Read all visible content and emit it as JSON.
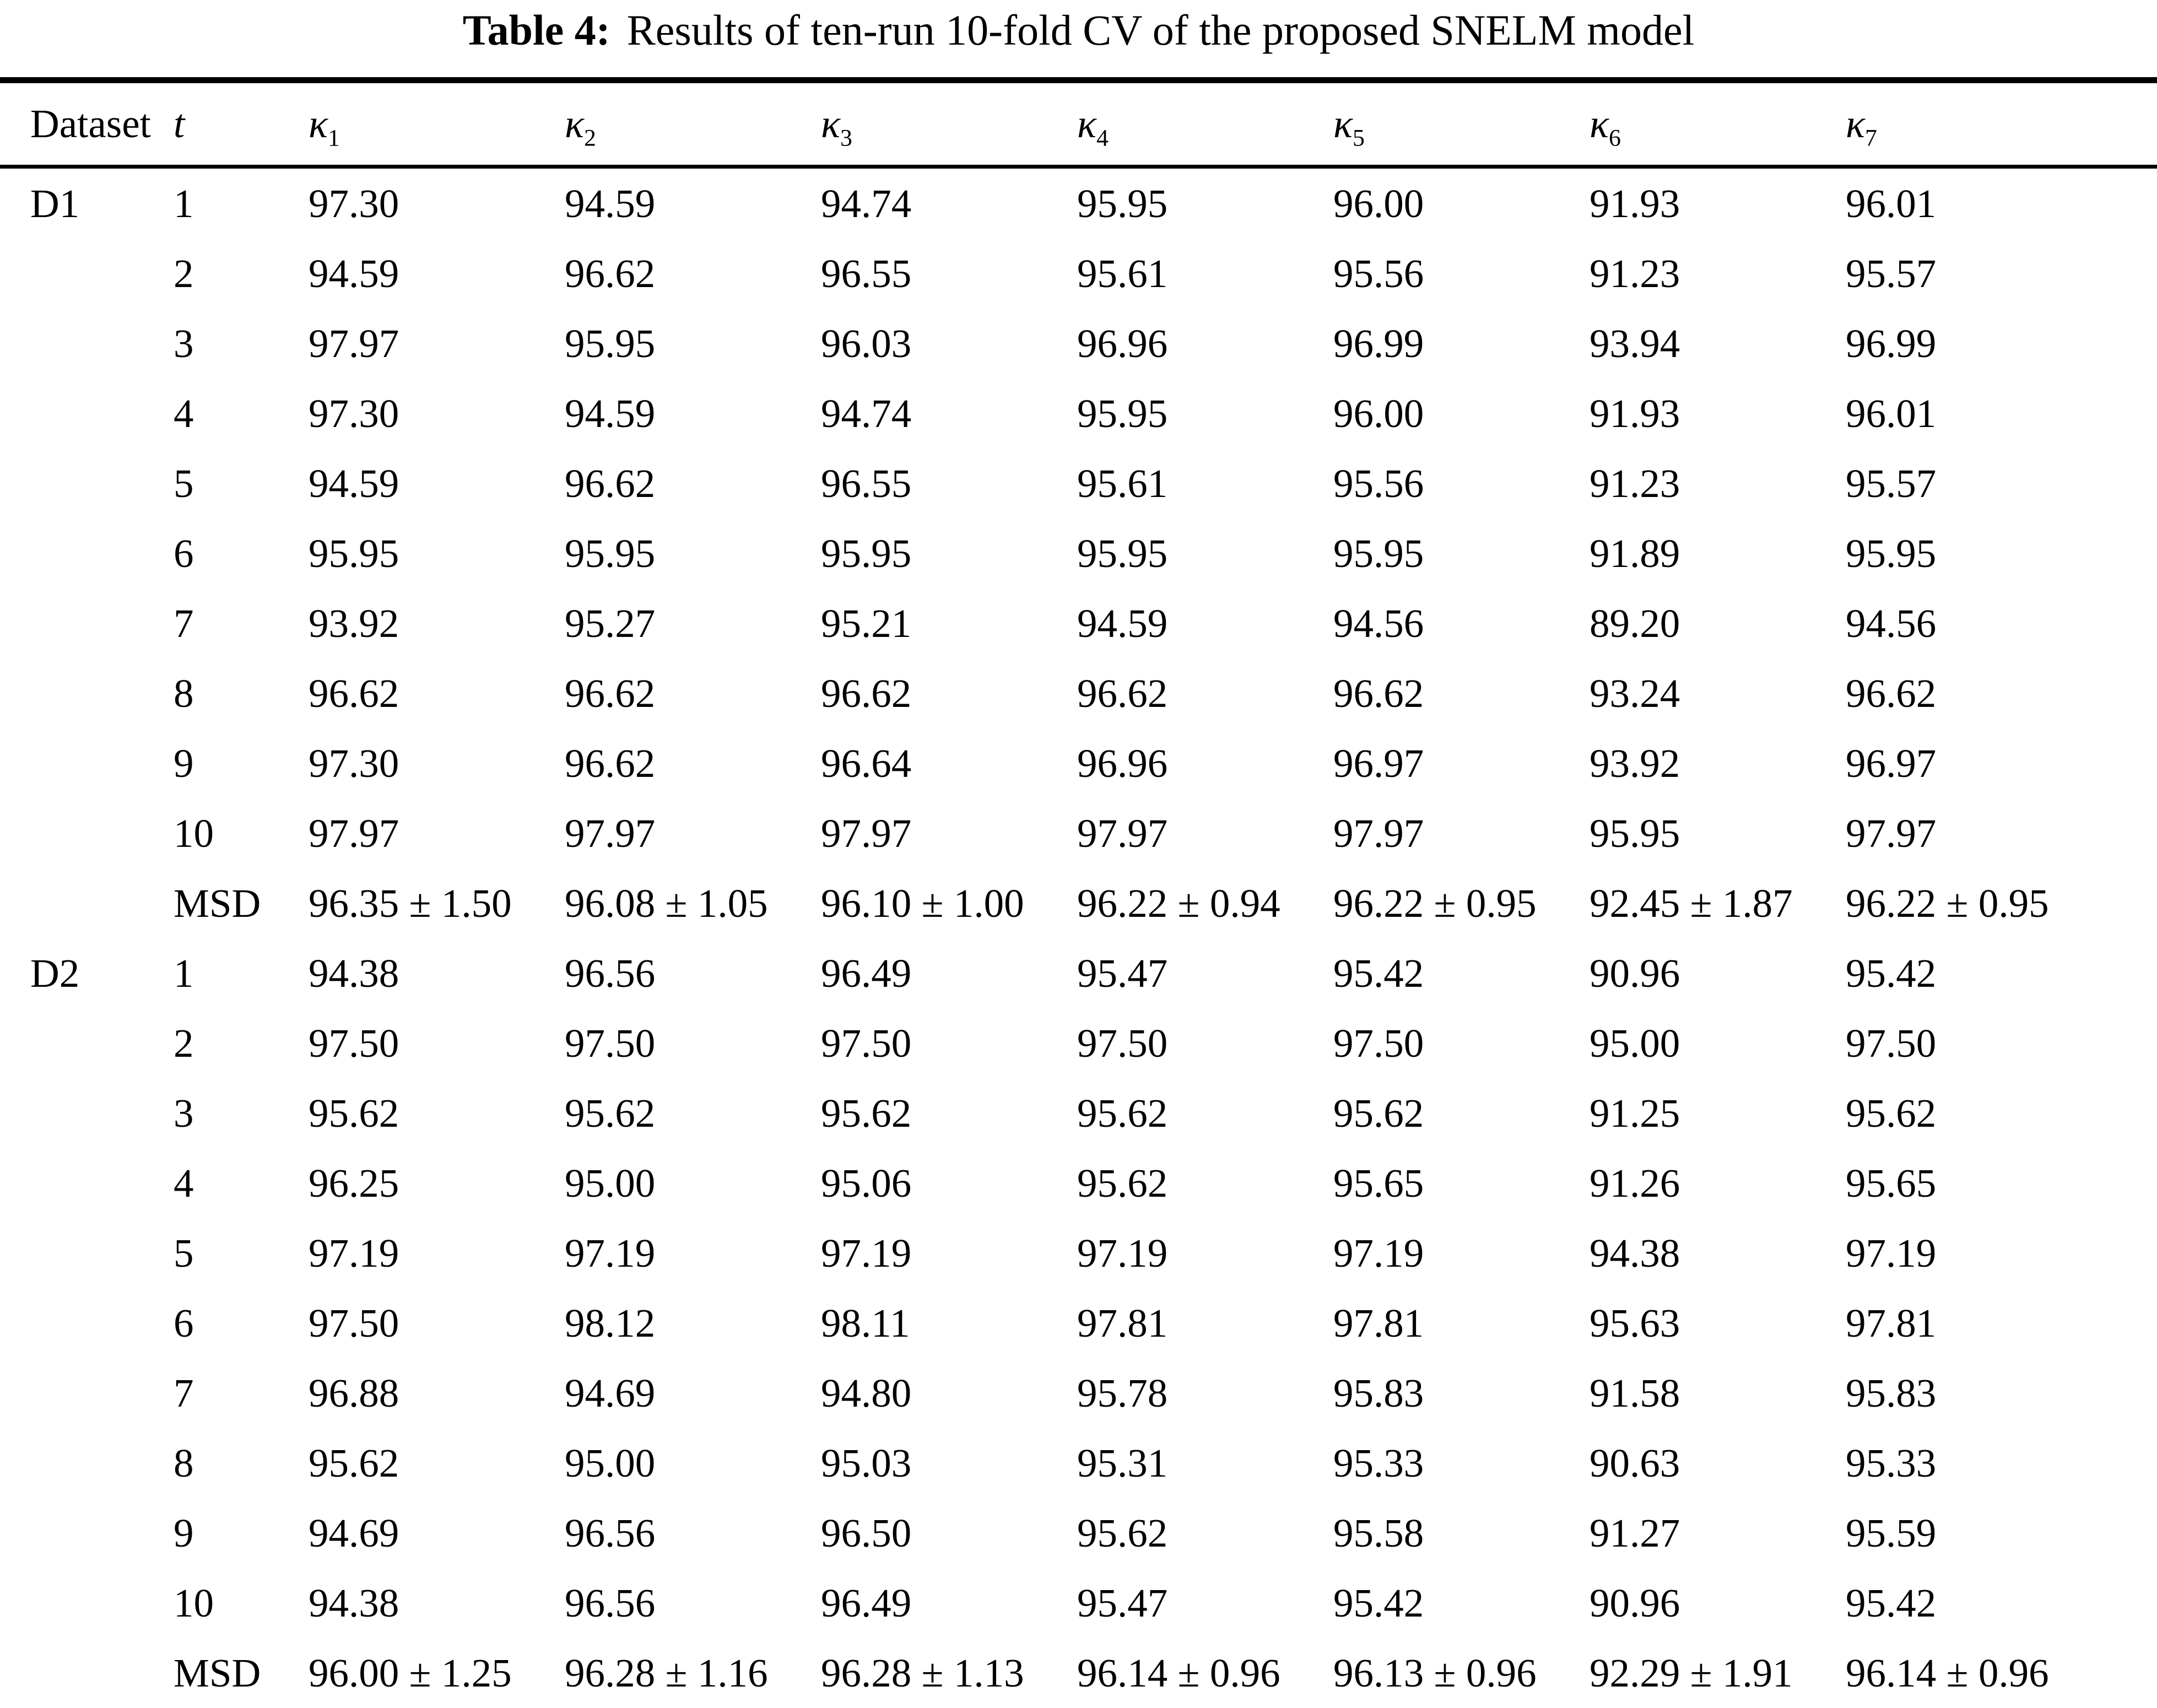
{
  "caption": {
    "label": "Table 4:",
    "text": "Results of ten-run 10-fold CV of the proposed SNELM model"
  },
  "table": {
    "columns": [
      {
        "text": "Dataset",
        "sub": ""
      },
      {
        "text": "t",
        "sub": ""
      },
      {
        "text": "κ",
        "sub": "1"
      },
      {
        "text": "κ",
        "sub": "2"
      },
      {
        "text": "κ",
        "sub": "3"
      },
      {
        "text": "κ",
        "sub": "4"
      },
      {
        "text": "κ",
        "sub": "5"
      },
      {
        "text": "κ",
        "sub": "6"
      },
      {
        "text": "κ",
        "sub": "7"
      }
    ],
    "groups": [
      {
        "dataset": "D1",
        "rows": [
          {
            "t": "1",
            "values": [
              "97.30",
              "94.59",
              "94.74",
              "95.95",
              "96.00",
              "91.93",
              "96.01"
            ]
          },
          {
            "t": "2",
            "values": [
              "94.59",
              "96.62",
              "96.55",
              "95.61",
              "95.56",
              "91.23",
              "95.57"
            ]
          },
          {
            "t": "3",
            "values": [
              "97.97",
              "95.95",
              "96.03",
              "96.96",
              "96.99",
              "93.94",
              "96.99"
            ]
          },
          {
            "t": "4",
            "values": [
              "97.30",
              "94.59",
              "94.74",
              "95.95",
              "96.00",
              "91.93",
              "96.01"
            ]
          },
          {
            "t": "5",
            "values": [
              "94.59",
              "96.62",
              "96.55",
              "95.61",
              "95.56",
              "91.23",
              "95.57"
            ]
          },
          {
            "t": "6",
            "values": [
              "95.95",
              "95.95",
              "95.95",
              "95.95",
              "95.95",
              "91.89",
              "95.95"
            ]
          },
          {
            "t": "7",
            "values": [
              "93.92",
              "95.27",
              "95.21",
              "94.59",
              "94.56",
              "89.20",
              "94.56"
            ]
          },
          {
            "t": "8",
            "values": [
              "96.62",
              "96.62",
              "96.62",
              "96.62",
              "96.62",
              "93.24",
              "96.62"
            ]
          },
          {
            "t": "9",
            "values": [
              "97.30",
              "96.62",
              "96.64",
              "96.96",
              "96.97",
              "93.92",
              "96.97"
            ]
          },
          {
            "t": "10",
            "values": [
              "97.97",
              "97.97",
              "97.97",
              "97.97",
              "97.97",
              "95.95",
              "97.97"
            ]
          },
          {
            "t": "MSD",
            "values": [
              "96.35 ± 1.50",
              "96.08 ± 1.05",
              "96.10 ± 1.00",
              "96.22 ± 0.94",
              "96.22 ± 0.95",
              "92.45 ± 1.87",
              "96.22 ± 0.95"
            ]
          }
        ]
      },
      {
        "dataset": "D2",
        "rows": [
          {
            "t": "1",
            "values": [
              "94.38",
              "96.56",
              "96.49",
              "95.47",
              "95.42",
              "90.96",
              "95.42"
            ]
          },
          {
            "t": "2",
            "values": [
              "97.50",
              "97.50",
              "97.50",
              "97.50",
              "97.50",
              "95.00",
              "97.50"
            ]
          },
          {
            "t": "3",
            "values": [
              "95.62",
              "95.62",
              "95.62",
              "95.62",
              "95.62",
              "91.25",
              "95.62"
            ]
          },
          {
            "t": "4",
            "values": [
              "96.25",
              "95.00",
              "95.06",
              "95.62",
              "95.65",
              "91.26",
              "95.65"
            ]
          },
          {
            "t": "5",
            "values": [
              "97.19",
              "97.19",
              "97.19",
              "97.19",
              "97.19",
              "94.38",
              "97.19"
            ]
          },
          {
            "t": "6",
            "values": [
              "97.50",
              "98.12",
              "98.11",
              "97.81",
              "97.81",
              "95.63",
              "97.81"
            ]
          },
          {
            "t": "7",
            "values": [
              "96.88",
              "94.69",
              "94.80",
              "95.78",
              "95.83",
              "91.58",
              "95.83"
            ]
          },
          {
            "t": "8",
            "values": [
              "95.62",
              "95.00",
              "95.03",
              "95.31",
              "95.33",
              "90.63",
              "95.33"
            ]
          },
          {
            "t": "9",
            "values": [
              "94.69",
              "96.56",
              "96.50",
              "95.62",
              "95.58",
              "91.27",
              "95.59"
            ]
          },
          {
            "t": "10",
            "values": [
              "94.38",
              "96.56",
              "96.49",
              "95.47",
              "95.42",
              "90.96",
              "95.42"
            ]
          },
          {
            "t": "MSD",
            "values": [
              "96.00 ± 1.25",
              "96.28 ± 1.16",
              "96.28 ± 1.13",
              "96.14 ± 0.96",
              "96.13 ± 0.96",
              "92.29 ± 1.91",
              "96.14 ± 0.96"
            ]
          }
        ]
      }
    ]
  }
}
